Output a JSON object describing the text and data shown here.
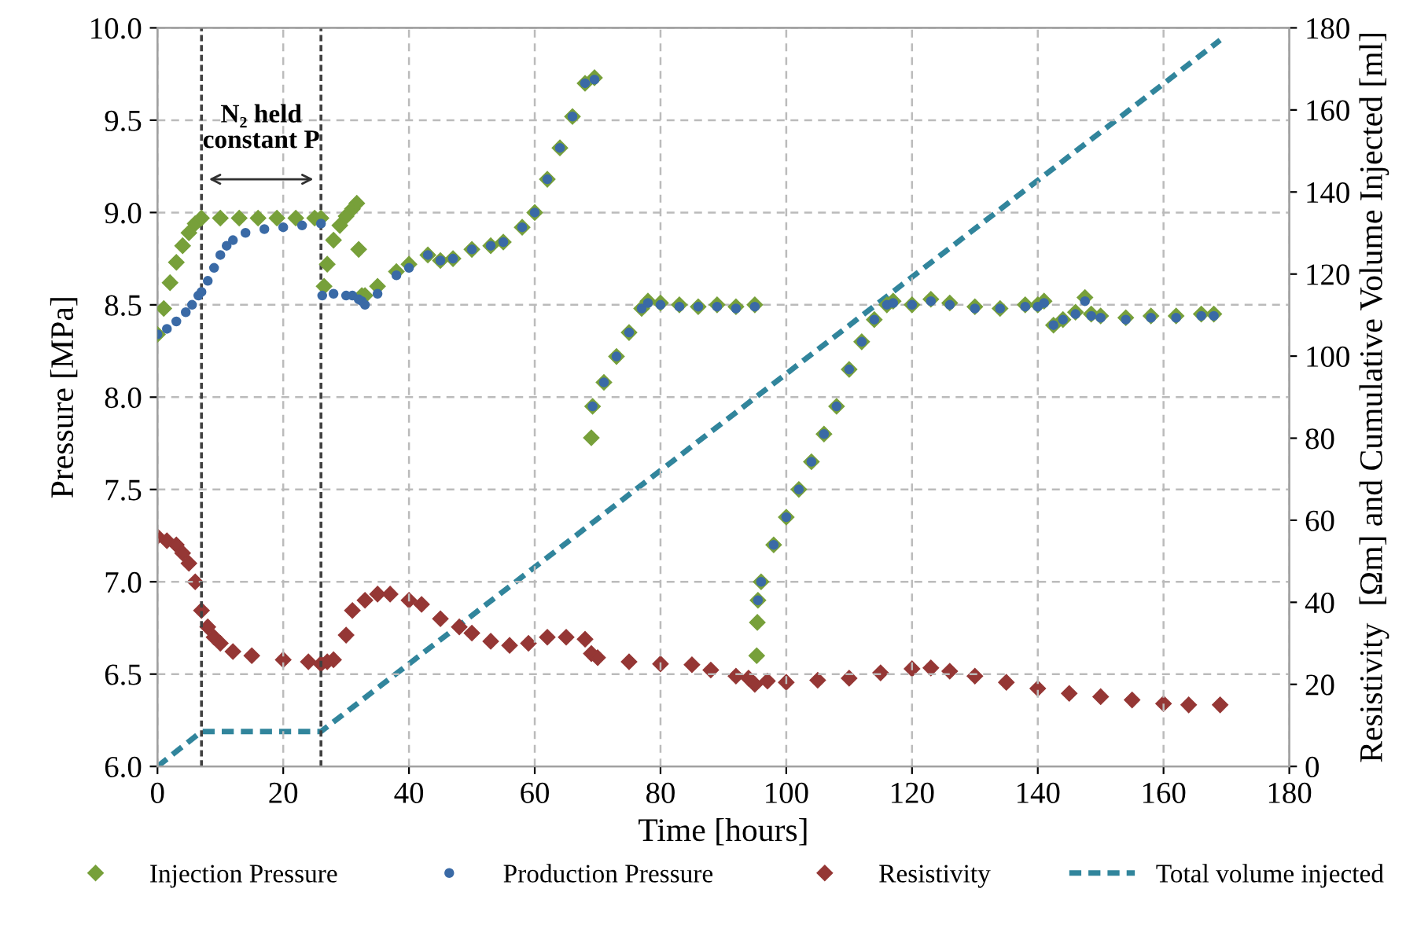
{
  "chart_data": {
    "type": "scatter",
    "xlabel": "Time [hours]",
    "ylabel": "Pressure [MPa]",
    "y2label": "Resistivity  [Ωm] and Cumulative Volume Injected [ml]",
    "xlim": [
      0,
      180
    ],
    "xticks": [
      0,
      20,
      40,
      60,
      80,
      100,
      120,
      140,
      160,
      180
    ],
    "ylim": [
      6.0,
      10.0
    ],
    "yticks": [
      {
        "value": 6.0,
        "label": "6.0"
      },
      {
        "value": 6.5,
        "label": "6.5"
      },
      {
        "value": 7.0,
        "label": "7.0"
      },
      {
        "value": 7.5,
        "label": "7.5"
      },
      {
        "value": 8.0,
        "label": "8.0"
      },
      {
        "value": 8.5,
        "label": "8.5"
      },
      {
        "value": 9.0,
        "label": "9.0"
      },
      {
        "value": 9.5,
        "label": "9.5"
      },
      {
        "value": 10.0,
        "label": "10.0"
      }
    ],
    "y2lim": [
      0,
      180
    ],
    "y2ticks": [
      0,
      20,
      40,
      60,
      80,
      100,
      120,
      140,
      160,
      180
    ],
    "grid": true,
    "legend": "bottom",
    "ref_lines": [
      {
        "axis": "x",
        "value": 7,
        "color": "#404040",
        "line_style": "dashed"
      },
      {
        "axis": "x",
        "value": 26,
        "color": "#404040",
        "line_style": "dashed"
      }
    ],
    "annotations": [
      "N₂ held\nconstant P"
    ],
    "series": [
      {
        "name": "Injection Pressure",
        "marker": "diamond",
        "color": "#77a03a",
        "x": [
          0,
          1,
          2,
          3,
          4,
          5,
          6,
          7,
          10,
          13,
          16,
          19,
          22,
          25,
          26,
          26.5,
          27,
          28,
          29,
          30,
          31,
          31.7,
          32,
          32.5,
          33,
          35,
          38,
          40,
          43,
          45,
          47,
          50,
          53,
          55,
          58,
          60,
          62,
          64,
          66,
          68,
          69.5,
          69,
          69.2,
          71,
          73,
          75,
          77,
          78,
          80,
          83,
          86,
          89,
          92,
          95,
          95.3,
          95.4,
          95.5,
          96,
          98,
          100,
          102,
          104,
          106,
          108,
          110,
          112,
          114,
          116,
          117,
          120,
          123,
          126,
          130,
          134,
          138,
          140,
          141,
          142.5,
          144,
          146,
          147.5,
          148.5,
          150,
          154,
          158,
          162,
          166,
          168
        ],
        "values": [
          8.34,
          8.48,
          8.62,
          8.73,
          8.82,
          8.89,
          8.94,
          8.97,
          8.97,
          8.97,
          8.97,
          8.97,
          8.97,
          8.97,
          8.97,
          8.6,
          8.72,
          8.85,
          8.93,
          8.98,
          9.02,
          9.05,
          8.8,
          8.55,
          8.55,
          8.6,
          8.68,
          8.72,
          8.77,
          8.74,
          8.75,
          8.8,
          8.82,
          8.84,
          8.92,
          9.0,
          9.18,
          9.35,
          9.52,
          9.7,
          9.73,
          7.78,
          7.95,
          8.08,
          8.22,
          8.35,
          8.48,
          8.52,
          8.51,
          8.5,
          8.49,
          8.5,
          8.49,
          8.5,
          6.6,
          6.78,
          6.9,
          7.0,
          7.2,
          7.35,
          7.5,
          7.65,
          7.8,
          7.95,
          8.15,
          8.3,
          8.42,
          8.5,
          8.52,
          8.5,
          8.53,
          8.51,
          8.49,
          8.48,
          8.5,
          8.5,
          8.52,
          8.39,
          8.42,
          8.46,
          8.54,
          8.45,
          8.44,
          8.43,
          8.44,
          8.44,
          8.45,
          8.45
        ]
      },
      {
        "name": "Production Pressure",
        "marker": "circle",
        "color": "#3a6aa6",
        "x": [
          0,
          1.5,
          3,
          4.5,
          5.5,
          6.5,
          7,
          8,
          9,
          10,
          11,
          12,
          14,
          17,
          20,
          23,
          26,
          26.2,
          28,
          30,
          31,
          32,
          32.5,
          33,
          35,
          38,
          40,
          43,
          45,
          47,
          50,
          53,
          55,
          58,
          60,
          62,
          64,
          66,
          68,
          69.5,
          69.2,
          71,
          73,
          75,
          77,
          78,
          80,
          83,
          86,
          89,
          92,
          95,
          95.5,
          96,
          98,
          100,
          102,
          104,
          106,
          108,
          110,
          112,
          114,
          116,
          117,
          120,
          123,
          126,
          130,
          134,
          138,
          140,
          141,
          142.5,
          144,
          146,
          147.5,
          148.5,
          150,
          154,
          158,
          162,
          166,
          168
        ],
        "values": [
          8.34,
          8.37,
          8.41,
          8.46,
          8.5,
          8.55,
          8.57,
          8.63,
          8.7,
          8.77,
          8.82,
          8.85,
          8.89,
          8.91,
          8.92,
          8.93,
          8.94,
          8.55,
          8.56,
          8.55,
          8.55,
          8.53,
          8.52,
          8.5,
          8.56,
          8.66,
          8.7,
          8.77,
          8.74,
          8.75,
          8.8,
          8.82,
          8.84,
          8.92,
          9.0,
          9.18,
          9.35,
          9.52,
          9.7,
          9.72,
          7.95,
          8.08,
          8.22,
          8.35,
          8.48,
          8.51,
          8.5,
          8.49,
          8.49,
          8.49,
          8.48,
          8.49,
          6.9,
          7.0,
          7.2,
          7.35,
          7.5,
          7.65,
          7.8,
          7.95,
          8.15,
          8.3,
          8.42,
          8.5,
          8.51,
          8.5,
          8.52,
          8.5,
          8.48,
          8.48,
          8.49,
          8.49,
          8.51,
          8.39,
          8.42,
          8.45,
          8.52,
          8.44,
          8.43,
          8.42,
          8.43,
          8.43,
          8.44,
          8.44
        ]
      },
      {
        "name": "Resistivity",
        "marker": "diamond",
        "color": "#953735",
        "axis": "y2",
        "x": [
          0,
          1.5,
          3,
          4,
          5,
          6,
          7,
          8,
          9,
          10,
          12,
          15,
          20,
          24,
          26,
          27,
          28,
          30,
          31,
          33,
          35,
          37,
          40,
          42,
          45,
          48,
          50,
          53,
          56,
          59,
          62,
          65,
          68,
          69,
          70,
          75,
          80,
          85,
          88,
          92,
          94,
          95,
          97,
          100,
          105,
          110,
          115,
          120,
          123,
          126,
          130,
          135,
          140,
          145,
          150,
          155,
          160,
          164,
          169
        ],
        "values": [
          56,
          55,
          54,
          52,
          49.5,
          45,
          38,
          34,
          31.5,
          30,
          28,
          27,
          26,
          25.5,
          25,
          25.5,
          26,
          32,
          38,
          40.5,
          42,
          42,
          40.5,
          39.5,
          36,
          34,
          32.5,
          30.5,
          29.5,
          30,
          31.5,
          31.5,
          31,
          27.5,
          26.5,
          25.5,
          25,
          24.8,
          23.5,
          22,
          21.5,
          20,
          20.8,
          20.5,
          21,
          21.5,
          22.8,
          23.8,
          24,
          23.2,
          22,
          20.5,
          19,
          17.8,
          17,
          16.2,
          15.3,
          15,
          15
        ]
      },
      {
        "name": "Total volume injected",
        "type": "line",
        "line_style": "dashed",
        "marker": "none",
        "color": "#31859c",
        "axis": "y2",
        "x": [
          0,
          7,
          26,
          169
        ],
        "values": [
          0,
          8.5,
          8.5,
          177
        ]
      }
    ]
  }
}
